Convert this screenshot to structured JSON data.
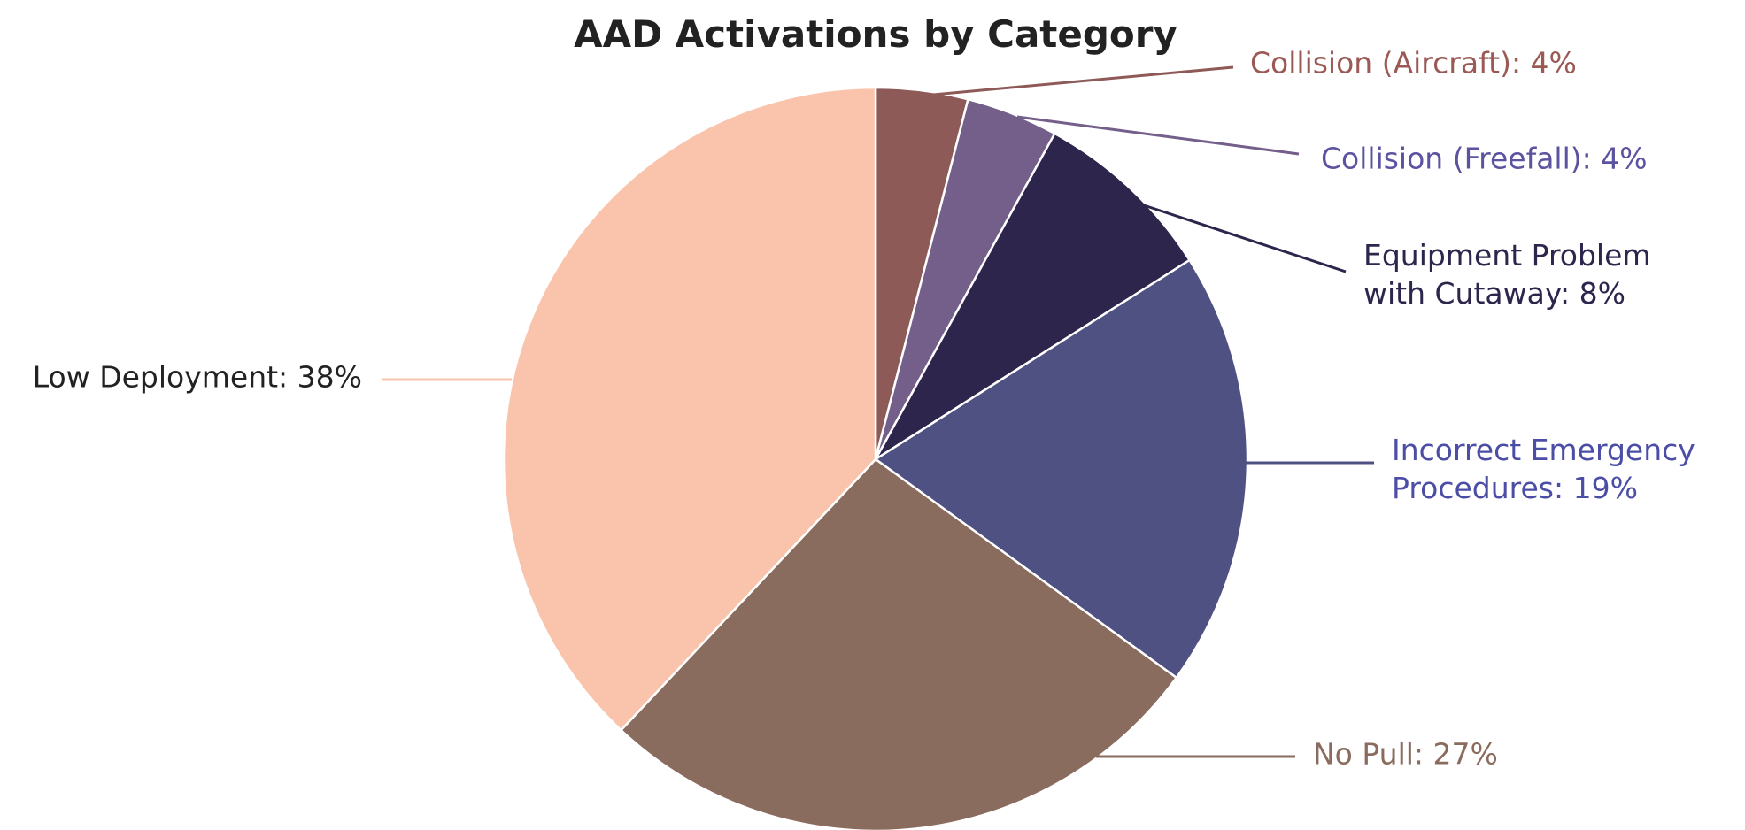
{
  "chart_data": {
    "type": "pie",
    "title": "AAD Activations by Category",
    "values": [
      4,
      4,
      8,
      19,
      27,
      38
    ],
    "value_labels": [
      "Collision (Aircraft): 4%",
      "Collision (Freefall): 4%",
      "Equipment Problem\nwith Cutaway: 8%",
      "Incorrect Emergency\nProcedures: 19%",
      "No Pull: 27%",
      "Low Deployment: 38%"
    ],
    "colors": [
      "#8e5a58",
      "#735f8a",
      "#2e254d",
      "#4f5183",
      "#8a6c5e",
      "#f9c4ab"
    ],
    "label_colors": [
      "#9a5955",
      "#5b53a0",
      "#2e254d",
      "#4c4ea6",
      "#8a6c5e",
      "#222222"
    ]
  }
}
